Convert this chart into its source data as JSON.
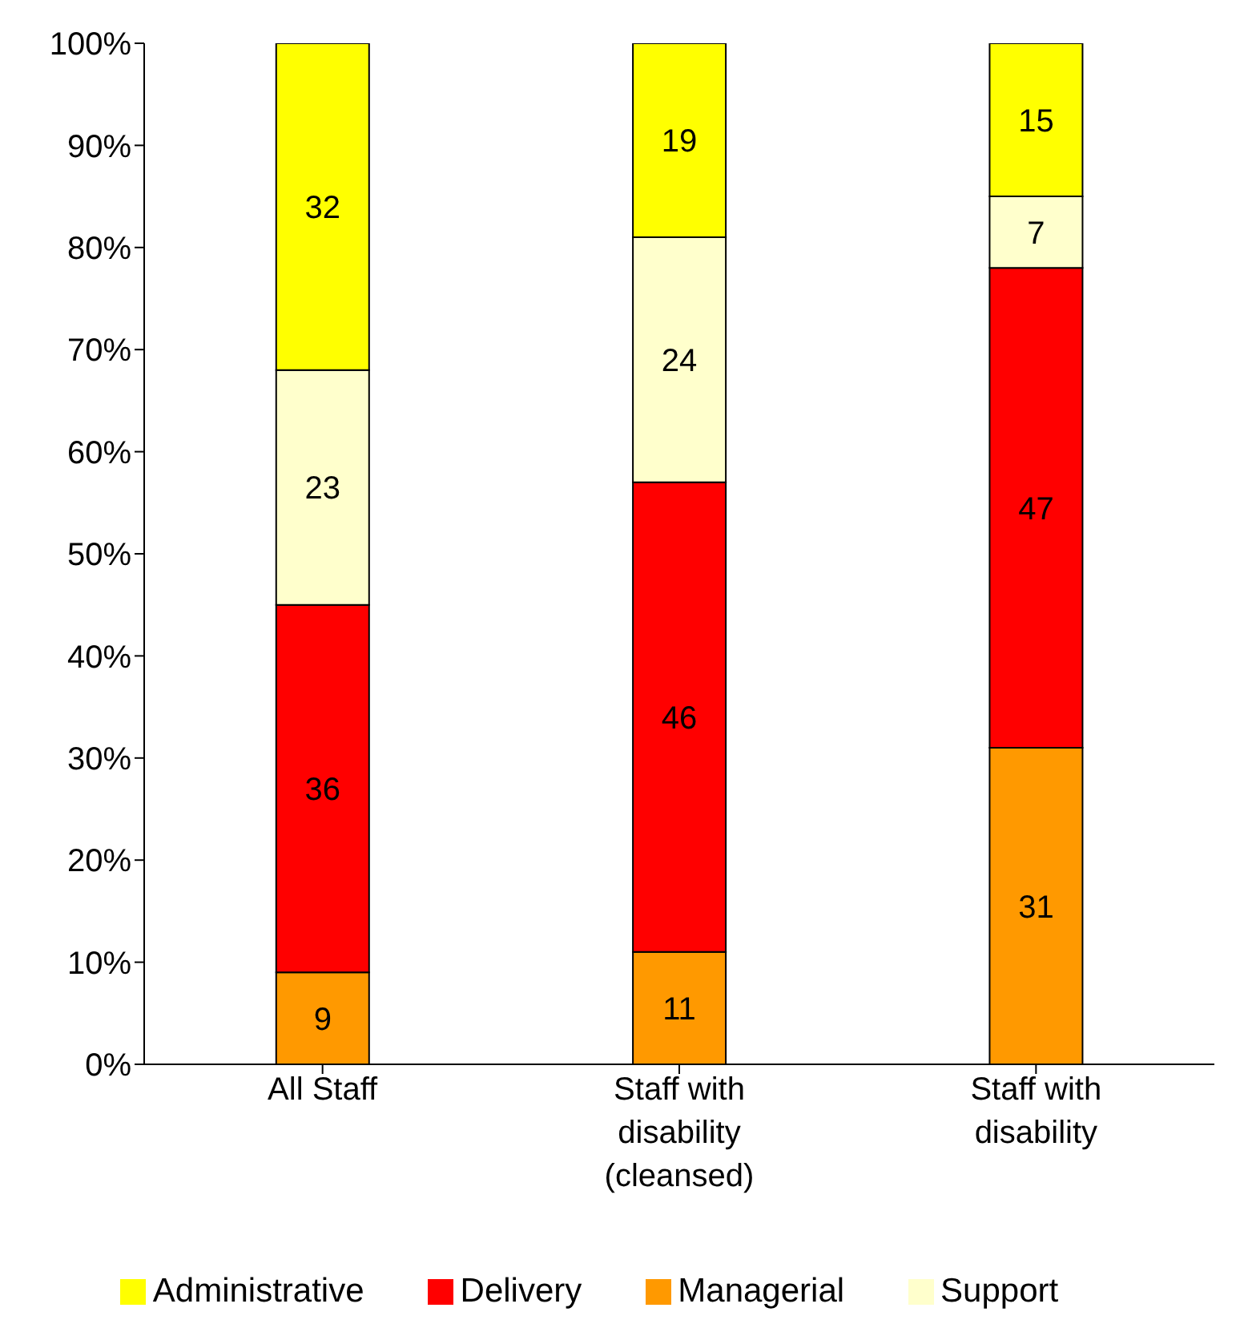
{
  "chart_data": {
    "type": "bar",
    "stacked": true,
    "categories": [
      "All Staff",
      "Staff with disability (cleansed)",
      "Staff with disability"
    ],
    "series": [
      {
        "name": "Managerial",
        "color": "#ff9900",
        "values": [
          9,
          11,
          31
        ]
      },
      {
        "name": "Delivery",
        "color": "#ff0000",
        "values": [
          36,
          46,
          47
        ]
      },
      {
        "name": "Support",
        "color": "#ffffcc",
        "values": [
          23,
          24,
          7
        ]
      },
      {
        "name": "Administrative",
        "color": "#ffff00",
        "values": [
          32,
          19,
          15
        ]
      }
    ],
    "ylim": [
      0,
      100
    ],
    "yticks": [
      {
        "value": 0,
        "label": "0%"
      },
      {
        "value": 10,
        "label": "10%"
      },
      {
        "value": 20,
        "label": "20%"
      },
      {
        "value": 30,
        "label": "30%"
      },
      {
        "value": 40,
        "label": "40%"
      },
      {
        "value": 50,
        "label": "50%"
      },
      {
        "value": 60,
        "label": "60%"
      },
      {
        "value": 70,
        "label": "70%"
      },
      {
        "value": 80,
        "label": "80%"
      },
      {
        "value": 90,
        "label": "90%"
      },
      {
        "value": 100,
        "label": "100%"
      }
    ],
    "data_labels": true,
    "grid": false,
    "legend": "bottom"
  }
}
